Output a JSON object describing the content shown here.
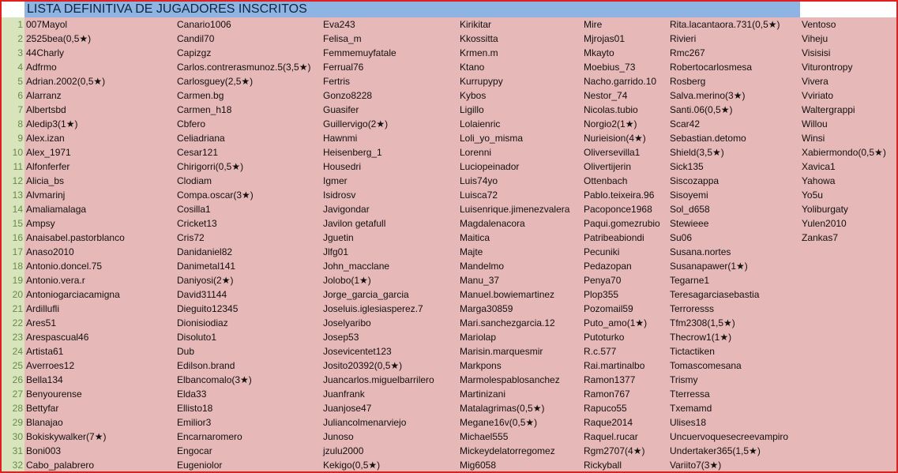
{
  "title": "LISTA DEFINITIVA DE JUGADORES INSCRITOS",
  "colors": {
    "title_bg": "#8db4e2",
    "cell_bg": "#e6b8b7",
    "row_header_bg": "#d8e4bc",
    "border": "#e02020"
  },
  "columns": [
    [
      "007Mayol",
      "2525bea(0,5★)",
      "44Charly",
      "Adfrmo",
      "Adrian.2002(0,5★)",
      "Alarranz",
      "Albertsbd",
      "Aledip3(1★)",
      "Alex.izan",
      "Alex_1971",
      "Alfonferfer",
      "Alicia_bs",
      "Alvmarinj",
      "Amaliamalaga",
      "Ampsy",
      "Anaisabel.pastorblanco",
      "Anaso2010",
      "Antonio.doncel.75",
      "Antonio.vera.r",
      "Antoniogarciacamigna",
      "Ardillufli",
      "Ares51",
      "Arespascual46",
      "Artista61",
      "Averroes12",
      "Bella134",
      "Benyourense",
      "Bettyfar",
      "Blanajao",
      "Bokiskywalker(7★)",
      "Boni003",
      "Cabo_palabrero"
    ],
    [
      "Canario1006",
      "Candil70",
      "Capizgz",
      "Carlos.contrerasmunoz.5(3,5★)",
      "Carlosguey(2,5★)",
      "Carmen.bg",
      "Carmen_h18",
      "Cbfero",
      "Celiadriana",
      "Cesar121",
      "Chirigorri(0,5★)",
      "Clodiam",
      "Compa.oscar(3★)",
      "Cosilla1",
      "Cricket13",
      "Cris72",
      "Danidaniel82",
      "Danimetal141",
      "Daniyosi(2★)",
      "David31144",
      "Dieguito12345",
      "Dionisiodiaz",
      "Disoluto1",
      "Dub",
      "Edilson.brand",
      "Elbancomalo(3★)",
      "Elda33",
      "Ellisto18",
      "Emilior3",
      "Encarnaromero",
      "Engocar",
      "Eugeniolor"
    ],
    [
      "Eva243",
      "Felisa_m",
      "Femmemuyfatale",
      "Ferrual76",
      "Fertris",
      "Gonzo8228",
      "Guasifer",
      "Guillervigo(2★)",
      "Hawnmi",
      "Heisenberg_1",
      "Housedri",
      "Igmer",
      "Isidrosv",
      "Javigondar",
      "Javilon getafull",
      "Jguetin",
      "Jlfg01",
      "John_macclane",
      "Jolobo(1★)",
      "Jorge_garcia_garcia",
      "Joseluis.iglesiasperez.7",
      "Joselyaribo",
      "Josep53",
      "Josevicentet123",
      "Josito20392(0,5★)",
      "Juancarlos.miguelbarrilero",
      "Juanfrank",
      "Juanjose47",
      "Juliancolmenarviejo",
      "Junoso",
      "jzulu2000",
      "Kekigo(0,5★)"
    ],
    [
      "Kirikitar",
      "Kkossitta",
      "Krmen.m",
      "Ktano",
      "Kurrupypy",
      "Kybos",
      "Ligillo",
      "Lolaienric",
      "Loli_yo_misma",
      "Lorenni",
      "Luciopeinador",
      "Luis74yo",
      "Luisca72",
      "Luisenrique.jimenezvalera",
      "Magdalenacora",
      "Maitica",
      "Majte",
      "Mandelmo",
      "Manu_37",
      "Manuel.bowiemartinez",
      "Marga30859",
      "Mari.sanchezgarcia.12",
      "Mariolap",
      "Marisin.marquesmir",
      "Markpons",
      "Marmolespablosanchez",
      "Martinizani",
      "Matalagrimas(0,5★)",
      "Megane16v(0,5★)",
      "Michael555",
      "Mickeydelatorregomez",
      "Mig6058"
    ],
    [
      "Mire",
      "Mjrojas01",
      "Mkayto",
      "Moebius_73",
      "Nacho.garrido.10",
      "Nestor_74",
      "Nicolas.tubio",
      "Norgio2(1★)",
      "Nurieision(4★)",
      "Oliversevilla1",
      "Olivertijerin",
      "Ottenbach",
      "Pablo.teixeira.96",
      "Pacoponce1968",
      "Paqui.gomezrubio",
      "Patribeabiondi",
      "Pecuniki",
      "Pedazopan",
      "Penya70",
      "Plop355",
      "Pozomail59",
      "Puto_amo(1★)",
      "Putoturko",
      "R.c.577",
      "Rai.martinalbo",
      "Ramon1377",
      "Ramon767",
      "Rapuco55",
      "Raque2014",
      "Raquel.rucar",
      "Rgm2707(4★)",
      "Rickyball"
    ],
    [
      "Rita.lacantaora.731(0,5★)",
      "Rivieri",
      "Rmc267",
      "Robertocarlosmesa",
      "Rosberg",
      "Salva.merino(3★)",
      "Santi.06(0,5★)",
      "Scar42",
      "Sebastian.detomo",
      "Shield(3,5★)",
      "Sick135",
      "Siscozappa",
      "Sisoyemi",
      "Sol_d658",
      "Stewieee",
      "Su06",
      "Susana.nortes",
      "Susanapawer(1★)",
      "Tegarne1",
      "Teresagarciasebastia",
      "Terroresss",
      "Tfm2308(1,5★)",
      "Thecrow1(1★)",
      "Tictactiken",
      "Tomascomesana",
      "Trismy",
      "Tterressa",
      "Txemamd",
      "Ulises18",
      "Uncuervoquesecreevampiro",
      "Undertaker365(1,5★)",
      "Variito7(3★)"
    ],
    [
      "Ventoso",
      "Viheju",
      "Visisisi",
      "Viturontropy",
      "Vivera",
      "Vviriato",
      "Waltergrappi",
      "Willou",
      "Winsi",
      "Xabiermondo(0,5★)",
      "Xavica1",
      "Yahowa",
      "Yo5u",
      "Yoliburgaty",
      "Yulen2010",
      "Zankas7"
    ]
  ],
  "row_numbers": [
    1,
    2,
    3,
    4,
    5,
    6,
    7,
    8,
    9,
    10,
    11,
    12,
    13,
    14,
    15,
    16,
    17,
    18,
    19,
    20,
    21,
    22,
    23,
    24,
    25,
    26,
    27,
    28,
    29,
    30,
    31,
    32
  ]
}
